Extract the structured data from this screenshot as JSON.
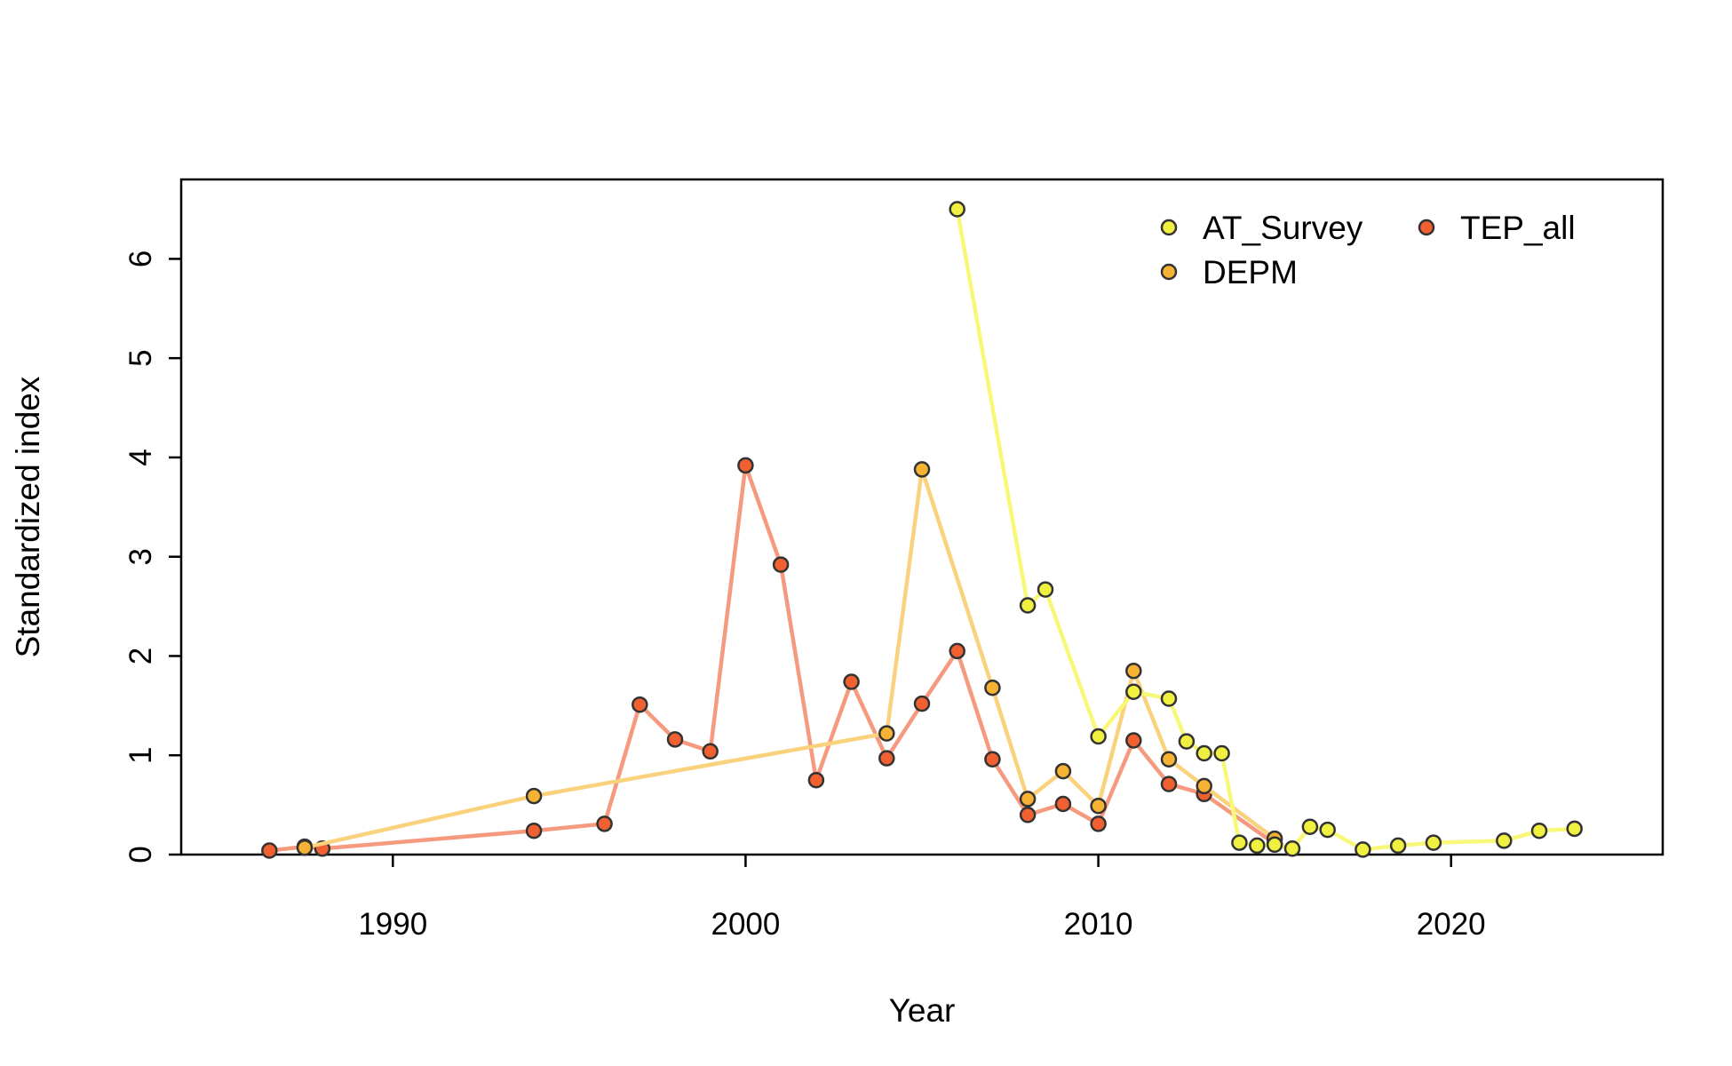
{
  "chart_data": {
    "type": "line",
    "title": "",
    "xlabel": "Year",
    "ylabel": "Standardized index",
    "xlim": [
      1984,
      2026
    ],
    "ylim": [
      0,
      6.8
    ],
    "xticks": [
      1990,
      2000,
      2010,
      2020
    ],
    "yticks": [
      0,
      1,
      2,
      3,
      4,
      5,
      6
    ],
    "grid": false,
    "legend_position": "top-right",
    "series": [
      {
        "name": "TEP_all",
        "color": "#f06030",
        "line_color": "#f59a7e",
        "points": [
          [
            1986.5,
            0.04
          ],
          [
            1987.5,
            0.08
          ],
          [
            1988,
            0.06
          ],
          [
            1994,
            0.24
          ],
          [
            1996,
            0.31
          ],
          [
            1997,
            1.51
          ],
          [
            1998,
            1.16
          ],
          [
            1999,
            1.04
          ],
          [
            2000,
            3.92
          ],
          [
            2001,
            2.92
          ],
          [
            2002,
            0.75
          ],
          [
            2003,
            1.74
          ],
          [
            2004,
            0.97
          ],
          [
            2005,
            1.52
          ],
          [
            2006,
            2.05
          ],
          [
            2007,
            0.96
          ],
          [
            2008,
            0.4
          ],
          [
            2009,
            0.51
          ],
          [
            2010,
            0.31
          ],
          [
            2011,
            1.15
          ],
          [
            2012,
            0.71
          ],
          [
            2013,
            0.61
          ],
          [
            2015,
            0.11
          ]
        ]
      },
      {
        "name": "DEPM",
        "color": "#f5b233",
        "line_color": "#fad27e",
        "points": [
          [
            1987.5,
            0.07
          ],
          [
            1994,
            0.59
          ],
          [
            2004,
            1.22
          ],
          [
            2005,
            3.88
          ],
          [
            2007,
            1.68
          ],
          [
            2008,
            0.56
          ],
          [
            2009,
            0.84
          ],
          [
            2010,
            0.49
          ],
          [
            2011,
            1.85
          ],
          [
            2012,
            0.96
          ],
          [
            2013,
            0.69
          ],
          [
            2015,
            0.16
          ]
        ]
      },
      {
        "name": "AT_Survey",
        "color": "#f0f040",
        "line_color": "#f8f878",
        "points": [
          [
            2006,
            6.5
          ],
          [
            2008,
            2.51
          ],
          [
            2008.5,
            2.67
          ],
          [
            2010,
            1.19
          ],
          [
            2011,
            1.64
          ],
          [
            2012,
            1.57
          ],
          [
            2012.5,
            1.14
          ],
          [
            2013,
            1.02
          ],
          [
            2013.5,
            1.02
          ],
          [
            2014,
            0.12
          ],
          [
            2014.5,
            0.09
          ],
          [
            2015,
            0.1
          ],
          [
            2015.5,
            0.06
          ],
          [
            2016,
            0.28
          ],
          [
            2016.5,
            0.25
          ],
          [
            2017.5,
            0.05
          ],
          [
            2018.5,
            0.09
          ],
          [
            2019.5,
            0.12
          ],
          [
            2021.5,
            0.14
          ],
          [
            2022.5,
            0.24
          ],
          [
            2023.5,
            0.26
          ]
        ]
      }
    ],
    "legend": [
      {
        "name": "AT_Survey",
        "color": "#f0f040"
      },
      {
        "name": "TEP_all",
        "color": "#f06030"
      },
      {
        "name": "DEPM",
        "color": "#f5b233"
      }
    ]
  }
}
